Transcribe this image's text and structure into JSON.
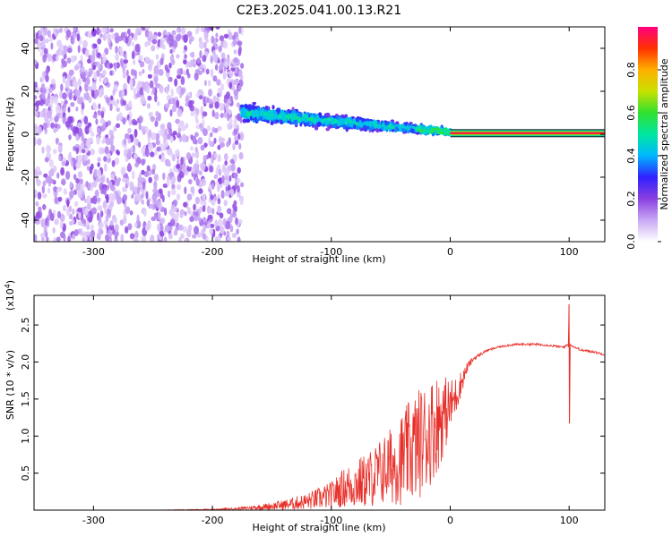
{
  "chart_data": [
    {
      "type": "heatmap",
      "title": "C2E3.2025.041.00.13.R21",
      "xlabel": "Height of straight line (km)",
      "ylabel": "Frequency (Hz)",
      "xlim": [
        -350,
        130
      ],
      "ylim": [
        -50,
        50
      ],
      "xticks": [
        -300,
        -200,
        -100,
        0,
        100
      ],
      "yticks": [
        -40,
        -20,
        0,
        20,
        40
      ],
      "grid": false,
      "colorbar": {
        "label": "Normalized spectral amplitude",
        "range": [
          0,
          1
        ],
        "ticks": [
          "0.0",
          "0.2",
          "0.4",
          "0.6",
          "0.8"
        ],
        "colors": [
          "#ffffff",
          "#c9a8f5",
          "#8a3fe0",
          "#3020ff",
          "#00b8ff",
          "#00e6a0",
          "#30e030",
          "#c8e000",
          "#ffb000",
          "#ff3000",
          "#ff0080"
        ]
      },
      "regions": [
        {
          "description": "scattered noise",
          "x_range": [
            -350,
            -175
          ],
          "freq_range": [
            -50,
            50
          ],
          "amplitude": [
            0.05,
            0.2
          ]
        },
        {
          "description": "signal band",
          "x_range": [
            -175,
            0
          ],
          "center_freq_start": 10,
          "center_freq_end": 1,
          "amplitude": [
            0.2,
            0.55
          ]
        },
        {
          "description": "carrier line",
          "x_range": [
            0,
            130
          ],
          "freq": 0.5,
          "amplitude": 0.95
        }
      ]
    },
    {
      "type": "line",
      "xlabel": "Height of straight line (km)",
      "ylabel": "SNR (10 * v/v)",
      "scale_label": "(x10",
      "scale_exponent": "4",
      "xlim": [
        -350,
        130
      ],
      "ylim": [
        0,
        2.9
      ],
      "xticks": [
        -300,
        -200,
        -100,
        0,
        100
      ],
      "yticks": [
        "0.5",
        "1.0",
        "1.5",
        "2.0",
        "2.5"
      ],
      "series": [
        {
          "color": "#e8302a",
          "x": [
            -350,
            -250,
            -200,
            -180,
            -160,
            -140,
            -120,
            -100,
            -90,
            -80,
            -70,
            -60,
            -50,
            -40,
            -30,
            -20,
            -10,
            -5,
            0,
            5,
            10,
            15,
            20,
            30,
            40,
            50,
            60,
            70,
            80,
            90,
            95,
            100,
            105,
            110,
            120,
            130
          ],
          "y": [
            0.0,
            0.0,
            0.01,
            0.02,
            0.04,
            0.07,
            0.12,
            0.2,
            0.3,
            0.35,
            0.4,
            0.5,
            0.6,
            0.7,
            0.85,
            1.0,
            1.2,
            1.3,
            1.4,
            1.55,
            1.75,
            1.95,
            2.05,
            2.15,
            2.2,
            2.23,
            2.24,
            2.24,
            2.23,
            2.21,
            2.2,
            2.24,
            2.2,
            2.16,
            2.14,
            2.1
          ],
          "noise_amplitude": [
            0.0,
            0.0,
            0.01,
            0.02,
            0.05,
            0.09,
            0.15,
            0.25,
            0.35,
            0.45,
            0.5,
            0.6,
            0.7,
            0.85,
            1.0,
            1.0,
            0.9,
            0.7,
            0.5,
            0.35,
            0.2,
            0.08,
            0.04,
            0.02,
            0.02,
            0.02,
            0.02,
            0.02,
            0.02,
            0.02,
            0.02,
            0.02,
            0.02,
            0.02,
            0.02,
            0.02
          ],
          "features": [
            {
              "x": 100,
              "y_max": 2.78,
              "y_min": 1.17
            }
          ]
        }
      ]
    }
  ]
}
